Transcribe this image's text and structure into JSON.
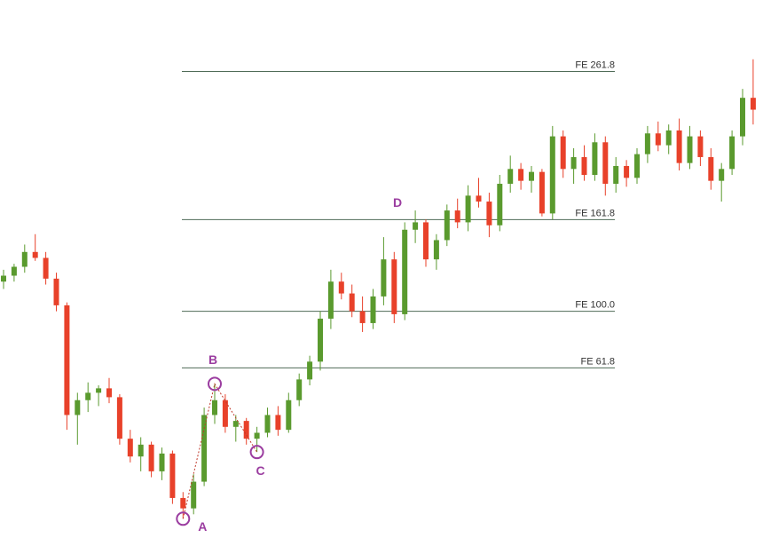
{
  "chart_data": {
    "type": "candlestick",
    "ylim": [
      -50,
      310
    ],
    "up_color": "#5a9a2e",
    "down_color": "#e8412a",
    "level_color": "#4f6b57",
    "annotation_color": "#9b3da0",
    "open": [
      120,
      124,
      130,
      140,
      136,
      122,
      104,
      30,
      40,
      45,
      48,
      42,
      14,
      2,
      10,
      -8,
      4,
      -26,
      -33,
      -15,
      30,
      40,
      22,
      26,
      14,
      18,
      30,
      20,
      40,
      54,
      66,
      95,
      120,
      112,
      100,
      92,
      110,
      135,
      98,
      155,
      160,
      135,
      148,
      168,
      160,
      178,
      174,
      158,
      186,
      196,
      188,
      194,
      166,
      218,
      196,
      204,
      192,
      214,
      186,
      198,
      190,
      206,
      220,
      212,
      222,
      200,
      218,
      204,
      188,
      196,
      218,
      244
    ],
    "high": [
      128,
      132,
      145,
      152,
      140,
      126,
      106,
      45,
      52,
      50,
      55,
      44,
      20,
      15,
      12,
      8,
      6,
      -22,
      -10,
      35,
      51,
      44,
      30,
      28,
      22,
      35,
      36,
      45,
      58,
      70,
      100,
      128,
      126,
      118,
      110,
      115,
      150,
      140,
      160,
      168,
      162,
      152,
      172,
      176,
      185,
      190,
      180,
      192,
      205,
      200,
      198,
      196,
      225,
      222,
      210,
      212,
      220,
      218,
      204,
      202,
      210,
      225,
      228,
      226,
      230,
      225,
      222,
      210,
      200,
      222,
      250,
      270
    ],
    "low": [
      115,
      120,
      126,
      134,
      118,
      100,
      20,
      10,
      32,
      36,
      38,
      10,
      -2,
      -8,
      -12,
      -14,
      -30,
      -40,
      -37,
      -18,
      24,
      18,
      12,
      10,
      5,
      15,
      16,
      18,
      36,
      50,
      60,
      88,
      108,
      96,
      86,
      88,
      104,
      92,
      94,
      146,
      130,
      128,
      144,
      156,
      154,
      170,
      150,
      154,
      180,
      182,
      180,
      164,
      162,
      190,
      186,
      188,
      188,
      178,
      180,
      184,
      186,
      200,
      208,
      206,
      195,
      196,
      198,
      182,
      174,
      192,
      212,
      226
    ],
    "close": [
      124,
      130,
      140,
      136,
      122,
      104,
      30,
      40,
      45,
      48,
      42,
      14,
      2,
      10,
      -8,
      4,
      -26,
      -33,
      -15,
      30,
      40,
      22,
      26,
      14,
      18,
      30,
      20,
      40,
      54,
      66,
      95,
      120,
      112,
      100,
      92,
      110,
      135,
      98,
      155,
      160,
      135,
      148,
      168,
      160,
      178,
      174,
      158,
      186,
      196,
      188,
      194,
      166,
      218,
      196,
      204,
      192,
      214,
      186,
      198,
      190,
      206,
      220,
      212,
      222,
      200,
      218,
      204,
      188,
      196,
      218,
      244,
      236
    ],
    "levels": [
      {
        "label": "FE 261.8",
        "value": 261.8
      },
      {
        "label": "FE 161.8",
        "value": 161.8
      },
      {
        "label": "FE 100.0",
        "value": 100.0
      },
      {
        "label": "FE 61.8",
        "value": 61.8
      }
    ],
    "annotations": [
      "A",
      "B",
      "C",
      "D"
    ]
  }
}
